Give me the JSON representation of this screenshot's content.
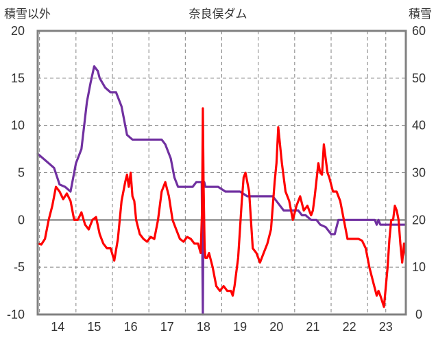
{
  "chart_data": {
    "type": "line",
    "title": "奈良俣ダム",
    "ylabel_left": "積雪以外",
    "ylabel_right": "積雪",
    "x_ticks": [
      "14",
      "15",
      "16",
      "17",
      "18",
      "19",
      "20",
      "21",
      "22",
      "23"
    ],
    "y_left_ticks": [
      "20",
      "15",
      "10",
      "5",
      "0",
      "-5",
      "-10"
    ],
    "y_right_ticks": [
      "60",
      "50",
      "40",
      "30",
      "20",
      "10",
      "0"
    ],
    "xlim": [
      13.45,
      23.55
    ],
    "ylim_left": [
      -10,
      20
    ],
    "ylim_right": [
      0,
      60
    ],
    "grid": true,
    "colors": {
      "series_red": "#ff0000",
      "series_purple": "#7030a0",
      "frame": "#808080",
      "grid": "#808080"
    },
    "series": [
      {
        "axis": "left",
        "color": "#ff0000",
        "x": [
          13.45,
          13.55,
          13.65,
          13.75,
          13.85,
          13.95,
          14.05,
          14.15,
          14.25,
          14.35,
          14.45,
          14.55,
          14.65,
          14.75,
          14.85,
          14.95,
          15.05,
          15.15,
          15.25,
          15.35,
          15.45,
          15.55,
          15.65,
          15.75,
          15.85,
          15.9,
          15.95,
          16.0,
          16.05,
          16.1,
          16.15,
          16.25,
          16.35,
          16.45,
          16.55,
          16.65,
          16.75,
          16.85,
          16.95,
          17.05,
          17.15,
          17.25,
          17.35,
          17.45,
          17.55,
          17.65,
          17.75,
          17.85,
          17.92,
          17.96,
          17.98,
          18.0,
          18.03,
          18.05,
          18.1,
          18.15,
          18.25,
          18.35,
          18.45,
          18.55,
          18.65,
          18.75,
          18.8,
          18.85,
          18.95,
          19.05,
          19.1,
          19.15,
          19.25,
          19.35,
          19.45,
          19.55,
          19.65,
          19.75,
          19.85,
          19.95,
          20.0,
          20.05,
          20.15,
          20.25,
          20.35,
          20.45,
          20.55,
          20.65,
          20.75,
          20.85,
          20.95,
          21.0,
          21.05,
          21.15,
          21.2,
          21.25,
          21.3,
          21.4,
          21.45,
          21.55,
          21.65,
          21.75,
          21.85,
          21.95,
          22.05,
          22.15,
          22.25,
          22.35,
          22.45,
          22.55,
          22.65,
          22.75,
          22.8,
          22.85,
          22.95,
          23.05,
          23.1,
          23.15,
          23.2,
          23.25,
          23.3,
          23.35,
          23.4,
          23.45,
          23.5,
          23.55
        ],
        "y": [
          -2.5,
          -2.6,
          -2,
          0,
          1.5,
          3.5,
          3,
          2.2,
          2.8,
          2,
          0,
          0,
          0.8,
          -0.5,
          -1,
          0,
          0.3,
          -1.5,
          -2.5,
          -3,
          -3,
          -4.3,
          -2,
          2,
          4,
          4.8,
          3.5,
          5,
          2.5,
          2,
          0,
          -1.5,
          -2,
          -2.3,
          -1.8,
          -2,
          0,
          3,
          4,
          2.5,
          0,
          -1,
          -2,
          -2.3,
          -1.8,
          -2,
          -2.5,
          -2.5,
          -3.5,
          1,
          11.8,
          4,
          -3,
          -4,
          -4,
          -3.5,
          -5,
          -7,
          -7.5,
          -7,
          -7.5,
          -7.5,
          -8,
          -7,
          -4,
          2,
          4.5,
          5,
          3,
          -3,
          -3.5,
          -4.5,
          -3.5,
          -2.5,
          -1,
          4,
          6,
          9.8,
          6,
          3,
          2,
          0,
          1.5,
          2.5,
          1,
          1.5,
          0.5,
          1,
          2.5,
          6,
          5,
          4.8,
          8,
          5,
          4.5,
          3,
          3,
          2,
          0,
          -2,
          -2,
          -2,
          -2,
          -2.2,
          -3,
          -5,
          -6.5,
          -8,
          -7.5,
          -8,
          -9.2,
          -5,
          -2,
          0,
          0,
          1.5,
          1,
          0,
          -2.5,
          -4.5,
          -2.5,
          -3.8
        ],
        "values_axis": "left"
      },
      {
        "axis": "right",
        "color": "#7030a0",
        "x": [
          13.45,
          13.6,
          13.75,
          13.9,
          14.05,
          14.2,
          14.35,
          14.5,
          14.65,
          14.8,
          14.9,
          15.0,
          15.1,
          15.15,
          15.3,
          15.45,
          15.6,
          15.75,
          15.9,
          16.05,
          16.3,
          16.6,
          16.85,
          16.95,
          17.1,
          17.2,
          17.3,
          17.5,
          17.7,
          17.8,
          17.85,
          17.95,
          17.98,
          18.0,
          18.02,
          18.05,
          18.2,
          18.4,
          18.6,
          18.8,
          19.0,
          19.2,
          19.4,
          19.6,
          19.8,
          19.9,
          20.0,
          20.2,
          20.4,
          20.6,
          20.7,
          20.8,
          20.95,
          21.1,
          21.2,
          21.35,
          21.5,
          21.6,
          21.7,
          21.8,
          22.0,
          22.2,
          22.4,
          22.6,
          22.7,
          22.75,
          22.8,
          22.85,
          22.9,
          23.0,
          23.1,
          23.2,
          23.55
        ],
        "y": [
          34,
          33,
          32,
          31,
          27.5,
          27,
          26,
          32,
          35,
          45,
          49,
          52.5,
          51.5,
          50,
          48,
          47,
          47,
          44,
          38,
          37,
          37,
          37,
          37,
          36,
          33,
          29,
          27,
          27,
          27,
          28,
          28,
          28,
          0,
          28,
          28,
          27,
          27,
          27,
          26,
          26,
          26,
          25,
          25,
          25,
          25,
          25,
          24,
          22,
          22,
          22,
          21,
          21,
          20,
          20,
          19,
          18.5,
          17,
          17,
          20,
          20,
          20,
          20,
          20,
          20,
          20,
          19,
          20,
          19,
          19,
          19,
          19,
          19,
          19
        ],
        "values_axis": "right"
      }
    ]
  }
}
